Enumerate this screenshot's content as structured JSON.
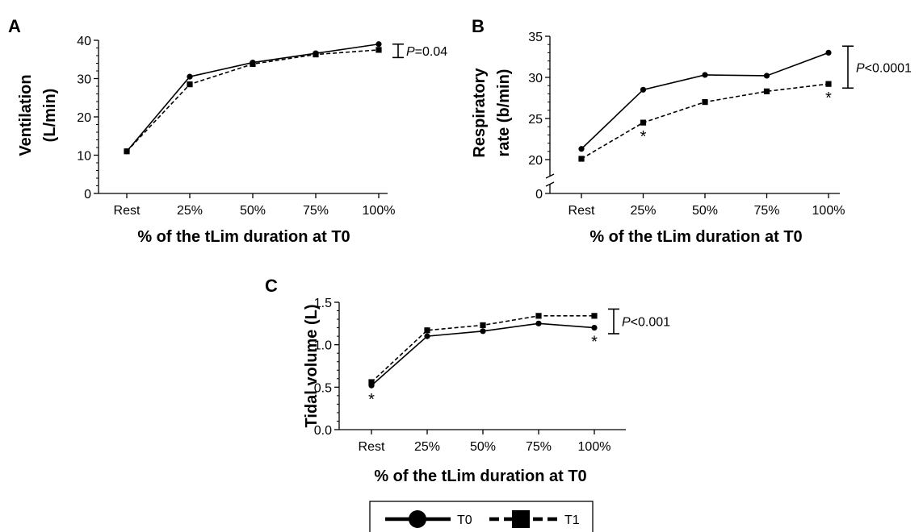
{
  "legend": [
    {
      "label": "T0",
      "marker": "circle",
      "style": "solid"
    },
    {
      "label": "T1",
      "marker": "square",
      "style": "dashed"
    }
  ],
  "chart_data": [
    {
      "panel": "A",
      "type": "line",
      "title": "",
      "ylabel_lines": [
        "Ventilation",
        "(L/min)"
      ],
      "xlabel": "% of the tLim duration at T0",
      "categories": [
        "Rest",
        "25%",
        "50%",
        "75%",
        "100%"
      ],
      "ylim": [
        0,
        40
      ],
      "yticks": [
        0,
        10,
        20,
        30,
        40
      ],
      "ytick_labels": [
        "0",
        "10",
        "20",
        "30",
        "40"
      ],
      "series": [
        {
          "name": "T0",
          "values": [
            11,
            30.5,
            34.2,
            36.6,
            39.0
          ]
        },
        {
          "name": "T1",
          "values": [
            11,
            28.5,
            33.8,
            36.3,
            37.5
          ]
        }
      ],
      "significance": {
        "prefix": "P",
        "text": "=0.04",
        "from": 39.0,
        "to": 35.5,
        "category": 4
      },
      "stars": []
    },
    {
      "panel": "B",
      "type": "line",
      "title": "",
      "ylabel_lines": [
        "Respiratory",
        "rate (b/min)"
      ],
      "xlabel": "% of the tLim duration at T0",
      "categories": [
        "Rest",
        "25%",
        "50%",
        "75%",
        "100%"
      ],
      "ylim": [
        0,
        35
      ],
      "yticks": [
        0,
        20,
        25,
        30,
        35
      ],
      "ytick_labels": [
        "0",
        "20",
        "25",
        "30",
        "35"
      ],
      "axis_break": true,
      "series": [
        {
          "name": "T0",
          "values": [
            21.3,
            28.5,
            30.3,
            30.2,
            33.0
          ]
        },
        {
          "name": "T1",
          "values": [
            20.1,
            24.5,
            27.0,
            28.3,
            29.2
          ]
        }
      ],
      "significance": {
        "prefix": "P",
        "text": "<0.0001",
        "from": 33.8,
        "to": 28.7,
        "category": 4
      },
      "stars": [
        {
          "label": "*",
          "category": 1,
          "value": 24.5,
          "position": "below"
        },
        {
          "label": "*",
          "category": 4,
          "value": 29.2,
          "position": "below"
        }
      ]
    },
    {
      "panel": "C",
      "type": "line",
      "title": "",
      "ylabel_lines": [
        "Tidal volume (L)"
      ],
      "xlabel": "% of the tLim duration at T0",
      "categories": [
        "Rest",
        "25%",
        "50%",
        "75%",
        "100%"
      ],
      "ylim": [
        0,
        1.5
      ],
      "yticks": [
        0,
        0.5,
        1.0,
        1.5
      ],
      "ytick_labels": [
        "0.0",
        "0.5",
        "1.0",
        "1.5"
      ],
      "series": [
        {
          "name": "T0",
          "values": [
            0.52,
            1.1,
            1.16,
            1.25,
            1.2
          ]
        },
        {
          "name": "T1",
          "values": [
            0.56,
            1.17,
            1.23,
            1.34,
            1.34
          ]
        }
      ],
      "significance": {
        "prefix": "P",
        "text": "<0.001",
        "from": 1.42,
        "to": 1.13,
        "category": 4
      },
      "stars": [
        {
          "label": "*",
          "category": 0,
          "value": 0.52,
          "position": "below"
        },
        {
          "label": "*",
          "category": 4,
          "value": 1.2,
          "position": "below"
        }
      ]
    }
  ]
}
